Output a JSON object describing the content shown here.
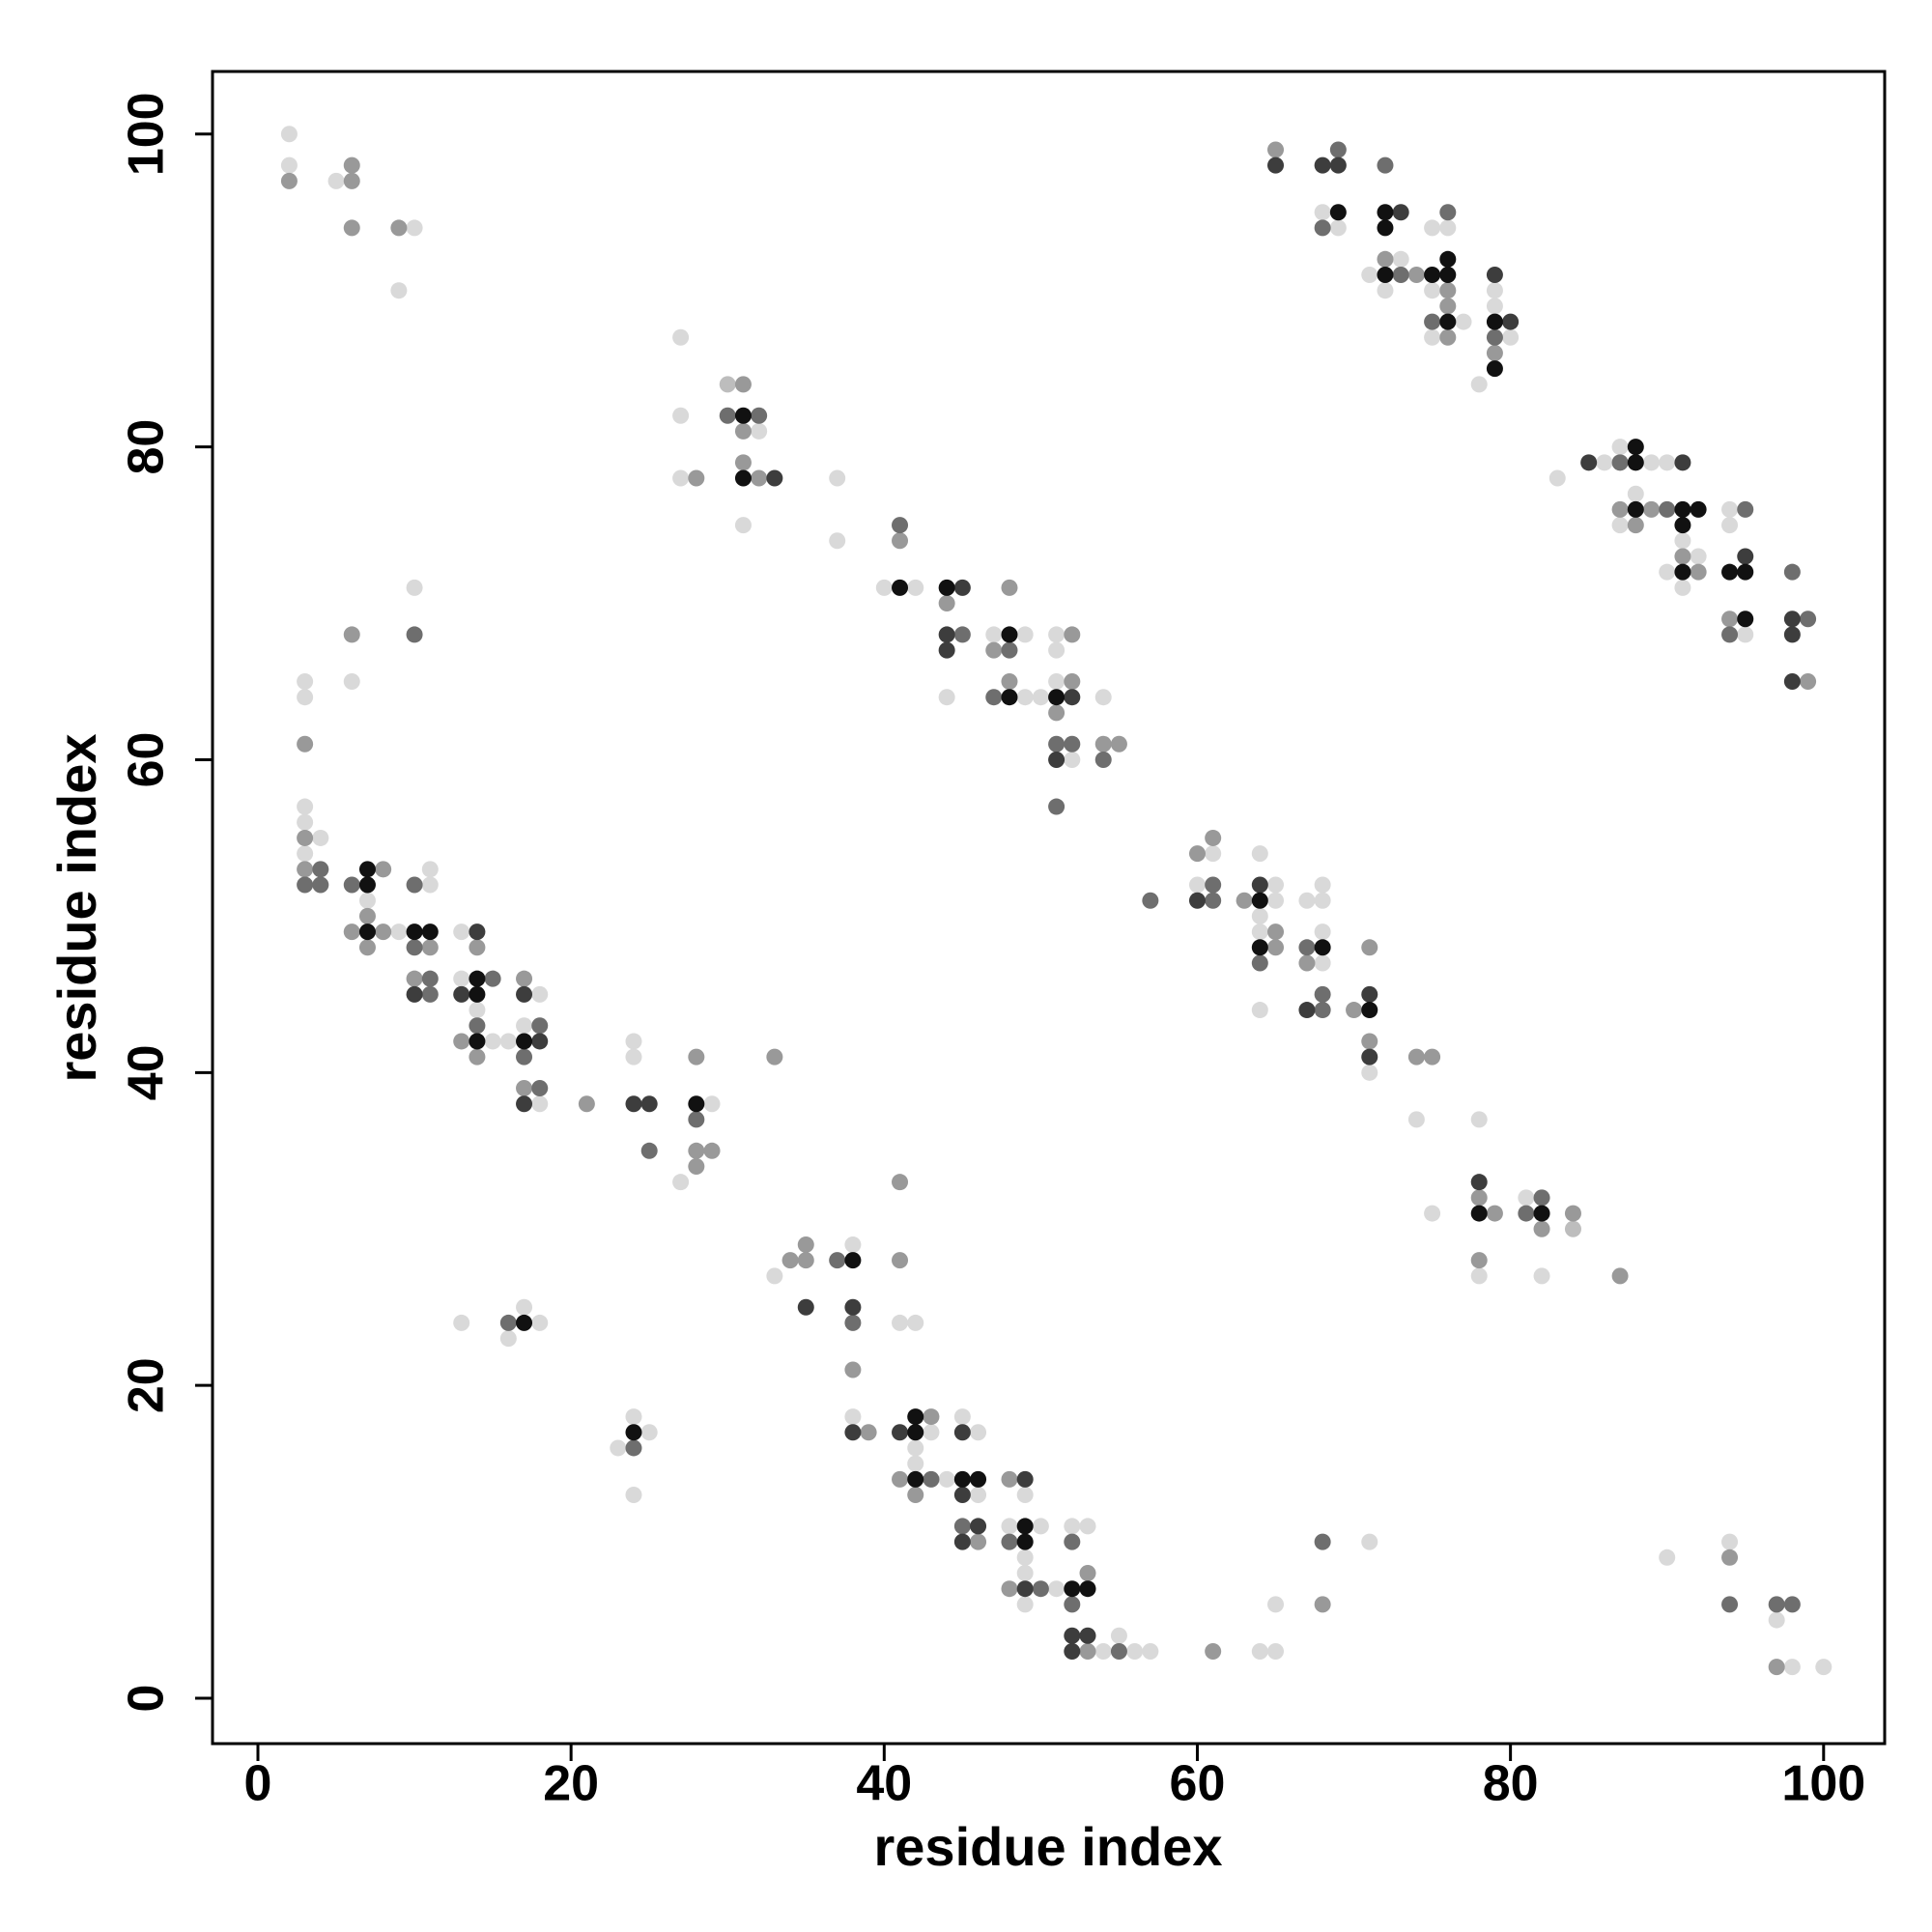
{
  "chart_data": {
    "type": "scatter",
    "xlabel": "residue index",
    "ylabel": "residue index",
    "xlim": [
      -2.9,
      103.9
    ],
    "ylim": [
      -2.9,
      104
    ],
    "xticks": [
      0,
      20,
      40,
      60,
      80,
      100
    ],
    "yticks": [
      0,
      20,
      40,
      60,
      80,
      100
    ],
    "grid": false,
    "series": [
      {
        "color": "#d9d9d9",
        "x": [
          2,
          2,
          5,
          10,
          9,
          10,
          6,
          3,
          3,
          3,
          3,
          4,
          3,
          7,
          9,
          11,
          11,
          13,
          13,
          14,
          15,
          16,
          18,
          17,
          18,
          24,
          24,
          29,
          27,
          13,
          17,
          18,
          16,
          24,
          25,
          23,
          24,
          27,
          27,
          32,
          27,
          31,
          37,
          37,
          40,
          42,
          44,
          47,
          49,
          49,
          50,
          51,
          51,
          51,
          52,
          54,
          33,
          38,
          41,
          42,
          38,
          43,
          42,
          42,
          44,
          45,
          46,
          46,
          49,
          48,
          50,
          49,
          49,
          51,
          49,
          52,
          53,
          54,
          55,
          56,
          57,
          64,
          65,
          65,
          71,
          61,
          60,
          65,
          65,
          64,
          64,
          64,
          64,
          67,
          68,
          68,
          68,
          68,
          71,
          74,
          75,
          78,
          78,
          81,
          82,
          68,
          69,
          73,
          71,
          72,
          75,
          76,
          75,
          77,
          75,
          79,
          79,
          80,
          78,
          83,
          86,
          87,
          89,
          90,
          88,
          87,
          91,
          90,
          92,
          91,
          94,
          94,
          95,
          90,
          94,
          97,
          98,
          100
        ],
        "y": [
          100,
          98,
          97,
          94,
          90,
          71,
          65,
          65,
          64,
          57,
          56,
          55,
          54,
          51,
          49,
          53,
          52,
          49,
          46,
          44,
          42,
          42,
          45,
          43,
          38,
          42,
          41,
          38,
          33,
          24,
          25,
          24,
          23,
          18,
          17,
          16,
          13,
          87,
          82,
          81,
          78,
          75,
          78,
          74,
          71,
          71,
          64,
          68,
          68,
          64,
          64,
          68,
          67,
          65,
          60,
          64,
          27,
          29,
          24,
          24,
          18,
          17,
          16,
          15,
          14,
          18,
          17,
          13,
          13,
          11,
          11,
          9,
          8,
          7,
          6,
          11,
          11,
          3,
          4,
          3,
          3,
          3,
          3,
          6,
          10,
          54,
          52,
          52,
          51,
          50,
          49,
          54,
          44,
          51,
          52,
          51,
          49,
          47,
          40,
          37,
          31,
          37,
          27,
          32,
          27,
          95,
          94,
          92,
          91,
          90,
          94,
          94,
          90,
          88,
          87,
          90,
          89,
          87,
          84,
          78,
          79,
          80,
          79,
          79,
          77,
          75,
          74,
          72,
          73,
          71,
          76,
          75,
          68,
          9,
          10,
          5,
          2,
          2
        ]
      },
      {
        "color": "#bdbdbd",
        "x": [
          30,
          84
        ],
        "y": [
          84,
          30
        ]
      },
      {
        "color": "#999999",
        "x": [
          2,
          6,
          6,
          6,
          9,
          6,
          3,
          3,
          3,
          8,
          7,
          6,
          8,
          7,
          11,
          10,
          14,
          13,
          14,
          17,
          17,
          21,
          28,
          28,
          29,
          28,
          33,
          31,
          31,
          31,
          32,
          28,
          41,
          44,
          48,
          47,
          48,
          52,
          52,
          51,
          54,
          55,
          34,
          35,
          35,
          41,
          41,
          38,
          39,
          43,
          41,
          42,
          46,
          48,
          48,
          53,
          53,
          61,
          68,
          63,
          65,
          65,
          67,
          70,
          71,
          71,
          74,
          75,
          78,
          79,
          78,
          82,
          84,
          87,
          65,
          72,
          74,
          76,
          76,
          76,
          79,
          87,
          89,
          88,
          91,
          92,
          94,
          99,
          94,
          97,
          60,
          61
        ],
        "y": [
          97,
          98,
          97,
          94,
          94,
          68,
          61,
          55,
          53,
          53,
          50,
          49,
          49,
          48,
          48,
          46,
          48,
          42,
          41,
          46,
          39,
          38,
          41,
          35,
          35,
          34,
          41,
          84,
          81,
          79,
          78,
          78,
          74,
          70,
          71,
          67,
          65,
          68,
          65,
          63,
          61,
          61,
          28,
          28,
          29,
          33,
          28,
          21,
          17,
          18,
          14,
          13,
          10,
          14,
          7,
          8,
          3,
          3,
          6,
          51,
          49,
          48,
          47,
          44,
          48,
          42,
          41,
          41,
          32,
          31,
          28,
          30,
          31,
          27,
          99,
          92,
          91,
          90,
          89,
          87,
          86,
          76,
          76,
          75,
          73,
          72,
          69,
          65,
          9,
          2,
          54,
          55
        ]
      },
      {
        "color": "#6e6e6e",
        "x": [
          10,
          4,
          3,
          4,
          6,
          10,
          10,
          11,
          11,
          15,
          14,
          18,
          17,
          18,
          25,
          28,
          16,
          24,
          30,
          32,
          41,
          45,
          48,
          47,
          51,
          52,
          54,
          51,
          37,
          38,
          43,
          45,
          48,
          50,
          52,
          52,
          55,
          68,
          57,
          61,
          61,
          64,
          67,
          68,
          68,
          81,
          82,
          69,
          68,
          72,
          73,
          76,
          75,
          79,
          87,
          90,
          95,
          94,
          98,
          99,
          94,
          97,
          98
        ],
        "y": [
          68,
          53,
          52,
          52,
          52,
          52,
          48,
          46,
          45,
          46,
          43,
          43,
          41,
          39,
          35,
          37,
          24,
          16,
          82,
          82,
          75,
          68,
          67,
          64,
          61,
          61,
          60,
          57,
          28,
          24,
          14,
          11,
          10,
          7,
          10,
          6,
          3,
          10,
          51,
          52,
          51,
          47,
          48,
          45,
          44,
          31,
          32,
          99,
          94,
          98,
          91,
          95,
          88,
          87,
          79,
          76,
          76,
          68,
          72,
          69,
          6,
          6,
          6
        ]
      },
      {
        "color": "#3d3d3d",
        "x": [
          10,
          13,
          14,
          17,
          18,
          17,
          24,
          25,
          33,
          45,
          44,
          44,
          52,
          51,
          38,
          35,
          38,
          41,
          45,
          45,
          46,
          45,
          49,
          49,
          52,
          53,
          52,
          60,
          64,
          67,
          71,
          71,
          78,
          65,
          68,
          69,
          73,
          79,
          80,
          85,
          91,
          95,
          98,
          98,
          98
        ],
        "y": [
          45,
          45,
          49,
          45,
          42,
          38,
          38,
          38,
          78,
          71,
          68,
          67,
          64,
          60,
          25,
          25,
          17,
          17,
          17,
          13,
          11,
          10,
          14,
          7,
          4,
          4,
          3,
          51,
          52,
          44,
          45,
          41,
          33,
          98,
          98,
          98,
          95,
          91,
          88,
          79,
          79,
          73,
          69,
          68,
          65
        ]
      },
      {
        "color": "#111111",
        "x": [
          7,
          7,
          7,
          10,
          11,
          14,
          14,
          14,
          17,
          28,
          17,
          24,
          31,
          31,
          41,
          44,
          48,
          48,
          51,
          38,
          42,
          42,
          42,
          45,
          46,
          49,
          49,
          52,
          53,
          64,
          64,
          68,
          71,
          78,
          82,
          69,
          72,
          72,
          72,
          76,
          75,
          76,
          76,
          79,
          79,
          88,
          88,
          88,
          91,
          92,
          91,
          91,
          94,
          95,
          95
        ],
        "y": [
          53,
          52,
          49,
          49,
          49,
          46,
          45,
          42,
          42,
          38,
          24,
          17,
          82,
          78,
          71,
          71,
          68,
          64,
          64,
          28,
          18,
          17,
          14,
          14,
          14,
          11,
          10,
          7,
          7,
          51,
          48,
          48,
          44,
          31,
          31,
          95,
          95,
          94,
          91,
          92,
          91,
          91,
          88,
          88,
          85,
          80,
          79,
          76,
          76,
          76,
          75,
          72,
          72,
          72,
          69
        ]
      }
    ]
  }
}
